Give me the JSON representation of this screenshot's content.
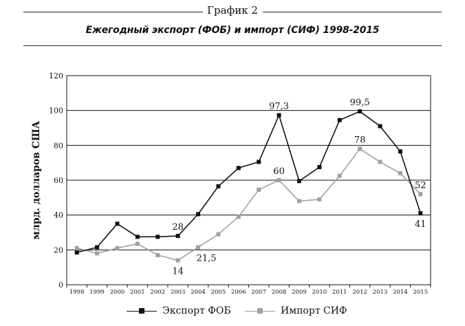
{
  "figure_label": "График 2",
  "chart_data": {
    "type": "line",
    "title": "Ежегодный экспорт (ФОБ) и импорт (СИФ) 1998-2015",
    "xlabel": "",
    "ylabel": "млрд. долларов США",
    "categories": [
      "1998",
      "1999",
      "2000",
      "2001",
      "2002",
      "2003",
      "2004",
      "2005",
      "2006",
      "2007",
      "2008",
      "2009",
      "2010",
      "2011",
      "2012",
      "2013",
      "2014",
      "2015"
    ],
    "ylim": [
      0,
      120
    ],
    "yticks": [
      0,
      20,
      40,
      60,
      80,
      100,
      120
    ],
    "grid": "horizontal",
    "legend_position": "bottom",
    "series": [
      {
        "name": "Экспорт ФОБ",
        "color": "#111111",
        "values": [
          18.5,
          21.5,
          35,
          27.5,
          27.5,
          28,
          40.5,
          56.5,
          67,
          70.5,
          97.3,
          59.5,
          67.5,
          94.5,
          99.5,
          91,
          76.5,
          41
        ]
      },
      {
        "name": "Импорт СИФ",
        "color": "#a0a0a0",
        "values": [
          21,
          18,
          21,
          23.5,
          17,
          14,
          21.5,
          29,
          39,
          54.5,
          60,
          48,
          49,
          62.5,
          78,
          70.5,
          64,
          52
        ]
      }
    ],
    "data_labels": [
      {
        "series": 0,
        "index": 5,
        "text": "28",
        "place": "above"
      },
      {
        "series": 0,
        "index": 10,
        "text": "97,3",
        "place": "above"
      },
      {
        "series": 0,
        "index": 14,
        "text": "99,5",
        "place": "above"
      },
      {
        "series": 0,
        "index": 17,
        "text": "41",
        "place": "below"
      },
      {
        "series": 1,
        "index": 5,
        "text": "14",
        "place": "below"
      },
      {
        "series": 1,
        "index": 6,
        "text": "21,5",
        "place": "below-right"
      },
      {
        "series": 1,
        "index": 10,
        "text": "60",
        "place": "above"
      },
      {
        "series": 1,
        "index": 14,
        "text": "78",
        "place": "above"
      },
      {
        "series": 1,
        "index": 17,
        "text": "52",
        "place": "above"
      }
    ]
  }
}
